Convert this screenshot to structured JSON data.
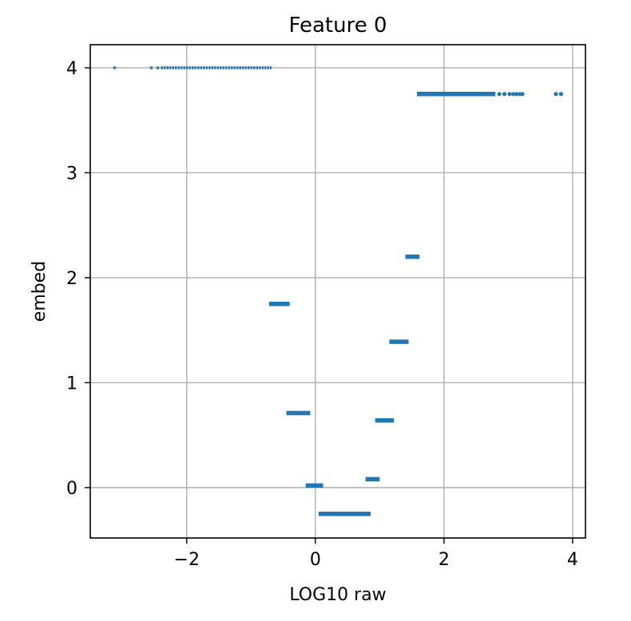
{
  "chart_data": {
    "type": "scatter",
    "title": "Feature 0",
    "xlabel": "LOG10 raw",
    "ylabel": "embed",
    "xlim": [
      -3.5,
      4.2
    ],
    "ylim": [
      -0.48,
      4.22
    ],
    "xticks": [
      -2,
      0,
      2,
      4
    ],
    "yticks": [
      0,
      1,
      2,
      3,
      4
    ],
    "xtick_labels": [
      "−2",
      "0",
      "2",
      "4"
    ],
    "ytick_labels": [
      "0",
      "1",
      "2",
      "3",
      "4"
    ],
    "grid": true,
    "color": "#1f77b4",
    "segments": [
      {
        "y": 4.0,
        "x_start": -2.4,
        "x_end": -0.68,
        "style": "dotted"
      },
      {
        "y": 3.75,
        "x_start": 1.58,
        "x_end": 2.8,
        "style": "solid"
      },
      {
        "y": 2.2,
        "x_start": 1.4,
        "x_end": 1.62,
        "style": "solid"
      },
      {
        "y": 1.75,
        "x_start": -0.72,
        "x_end": -0.4,
        "style": "solid"
      },
      {
        "y": 1.39,
        "x_start": 1.15,
        "x_end": 1.45,
        "style": "solid"
      },
      {
        "y": 0.71,
        "x_start": -0.45,
        "x_end": -0.08,
        "style": "solid"
      },
      {
        "y": 0.64,
        "x_start": 0.93,
        "x_end": 1.22,
        "style": "solid"
      },
      {
        "y": 0.08,
        "x_start": 0.78,
        "x_end": 1.0,
        "style": "solid"
      },
      {
        "y": 0.02,
        "x_start": -0.15,
        "x_end": 0.12,
        "style": "solid"
      },
      {
        "y": -0.25,
        "x_start": 0.05,
        "x_end": 0.86,
        "style": "solid"
      }
    ],
    "points": [
      {
        "x": -3.12,
        "y": 4.0
      },
      {
        "x": -2.55,
        "y": 4.0
      },
      {
        "x": -2.45,
        "y": 4.0
      },
      {
        "x": 2.86,
        "y": 3.75
      },
      {
        "x": 2.94,
        "y": 3.75
      },
      {
        "x": 3.02,
        "y": 3.75
      },
      {
        "x": 3.08,
        "y": 3.75
      },
      {
        "x": 3.13,
        "y": 3.75
      },
      {
        "x": 3.18,
        "y": 3.75
      },
      {
        "x": 3.22,
        "y": 3.75
      },
      {
        "x": 3.74,
        "y": 3.75
      },
      {
        "x": 3.82,
        "y": 3.75
      }
    ]
  }
}
